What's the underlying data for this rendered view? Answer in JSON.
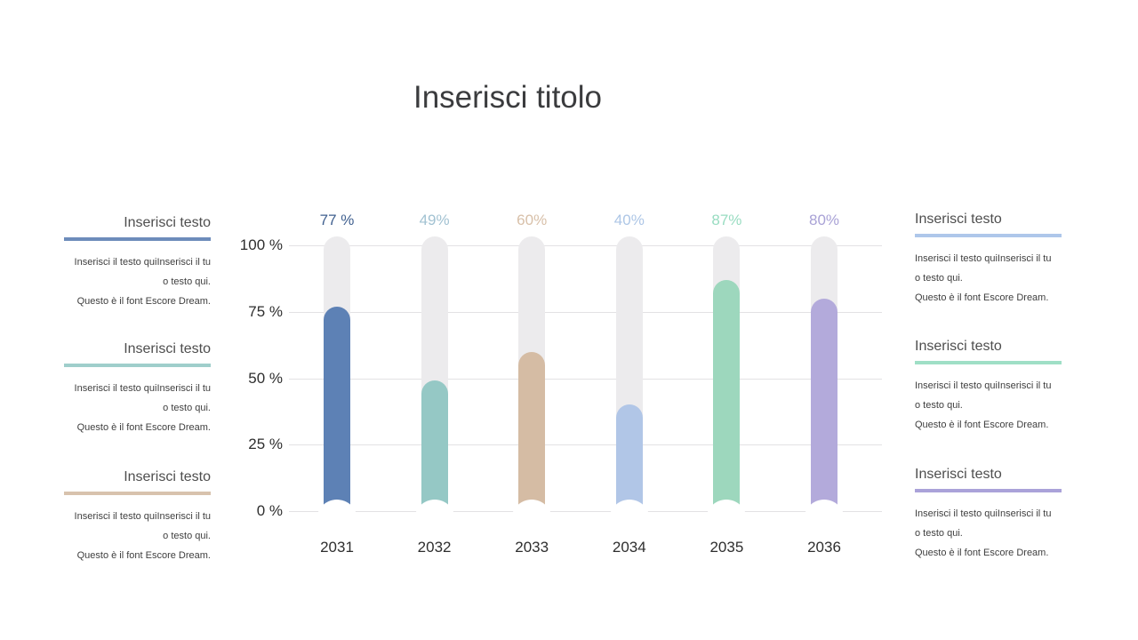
{
  "title": "Inserisci titolo",
  "chart_data": {
    "type": "bar",
    "title": "",
    "xlabel": "",
    "ylabel": "",
    "categories": [
      "2031",
      "2032",
      "2033",
      "2034",
      "2035",
      "2036"
    ],
    "values": [
      77,
      49,
      60,
      40,
      87,
      80
    ],
    "value_labels": [
      "77 %",
      "49%",
      "60%",
      "40%",
      "87%",
      "80%"
    ],
    "bar_colors": [
      "#5d81b5",
      "#95c8c5",
      "#d5bca4",
      "#b1c6e7",
      "#9dd7bd",
      "#b3aadb"
    ],
    "value_label_colors": [
      "#40608f",
      "#a2c2d2",
      "#d8c0a9",
      "#adc6e6",
      "#98dcc1",
      "#a9a2d6"
    ],
    "track_color": "#ecebed",
    "y_ticks": [
      "100 %",
      "75 %",
      "50 %",
      "25 %",
      "0 %"
    ],
    "y_tick_values": [
      100,
      75,
      50,
      25,
      0
    ],
    "ylim": [
      0,
      100
    ],
    "grid": true,
    "legend_position": "none"
  },
  "left_blocks": [
    {
      "heading": "Inserisci testo",
      "line_color": "#6d8cbb",
      "body": [
        "Inserisci il testo quiInserisci il tu",
        "o testo qui.",
        "Questo è il font Escore Dream."
      ]
    },
    {
      "heading": "Inserisci testo",
      "line_color": "#9fcecb",
      "body": [
        "Inserisci il testo quiInserisci il tu",
        "o testo qui.",
        "Questo è il font Escore Dream."
      ]
    },
    {
      "heading": "Inserisci testo",
      "line_color": "#d8c2ad",
      "body": [
        "Inserisci il testo quiInserisci il tu",
        "o testo qui.",
        "Questo è il font Escore Dream."
      ]
    }
  ],
  "right_blocks": [
    {
      "heading": "Inserisci testo",
      "line_color": "#aec7ea",
      "body": [
        "Inserisci il testo quiInserisci il tu",
        "o testo qui.",
        "Questo è il font Escore Dream."
      ]
    },
    {
      "heading": "Inserisci testo",
      "line_color": "#9fdfc6",
      "body": [
        "Inserisci il testo quiInserisci il tu",
        "o testo qui.",
        "Questo è il font Escore Dream."
      ]
    },
    {
      "heading": "Inserisci testo",
      "line_color": "#aaa2d9",
      "body": [
        "Inserisci il testo quiInserisci il tu",
        "o testo qui.",
        "Questo è il font Escore Dream."
      ]
    }
  ]
}
